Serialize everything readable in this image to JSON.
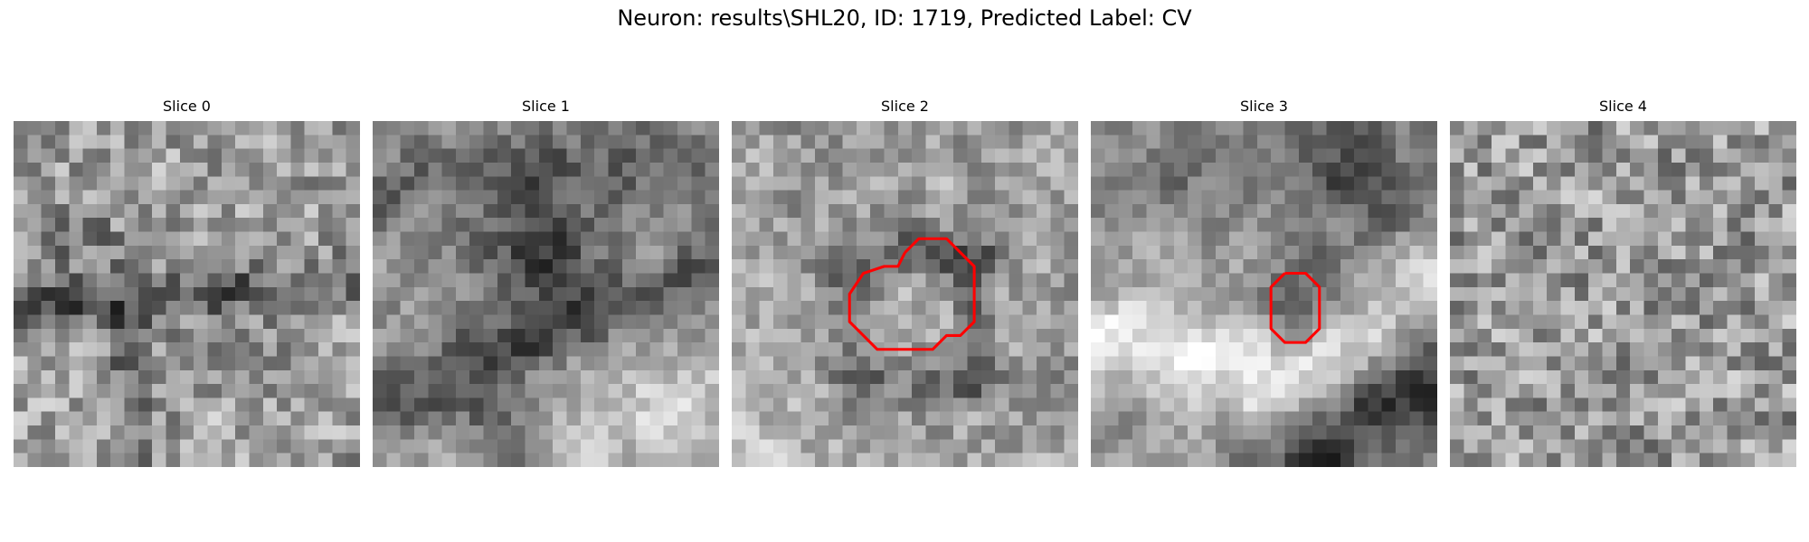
{
  "figure": {
    "title": "Neuron: results\\SHL20, ID: 1719, Predicted Label: CV"
  },
  "panels": [
    {
      "title": "Slice 0",
      "seed": 11,
      "blur": 0.25,
      "scheme": "slice0",
      "contour": []
    },
    {
      "title": "Slice 1",
      "seed": 23,
      "blur": 0.55,
      "scheme": "slice1",
      "contour": []
    },
    {
      "title": "Slice 2",
      "seed": 37,
      "blur": 0.45,
      "scheme": "slice2",
      "contour": [
        [
          12.5,
          9.5
        ],
        [
          13.5,
          8.5
        ],
        [
          15.5,
          8.5
        ],
        [
          17.5,
          10.5
        ],
        [
          17.5,
          14.5
        ],
        [
          16.5,
          15.5
        ],
        [
          15.5,
          15.5
        ],
        [
          14.5,
          16.5
        ],
        [
          10.5,
          16.5
        ],
        [
          9.5,
          15.5
        ],
        [
          8.5,
          14.5
        ],
        [
          8.5,
          12.5
        ],
        [
          9.5,
          11.0
        ],
        [
          11.0,
          10.5
        ],
        [
          12.0,
          10.5
        ],
        [
          12.5,
          9.5
        ]
      ]
    },
    {
      "title": "Slice 3",
      "seed": 53,
      "blur": 0.6,
      "scheme": "slice3",
      "contour": [
        [
          14.0,
          11.0
        ],
        [
          15.5,
          11.0
        ],
        [
          16.5,
          12.0
        ],
        [
          16.5,
          15.0
        ],
        [
          15.5,
          16.0
        ],
        [
          14.0,
          16.0
        ],
        [
          13.0,
          15.0
        ],
        [
          13.0,
          12.0
        ],
        [
          14.0,
          11.0
        ]
      ]
    },
    {
      "title": "Slice 4",
      "seed": 71,
      "blur": 0.15,
      "scheme": "slice4",
      "contour": []
    }
  ],
  "colors": {
    "contour": "#ff0000"
  }
}
